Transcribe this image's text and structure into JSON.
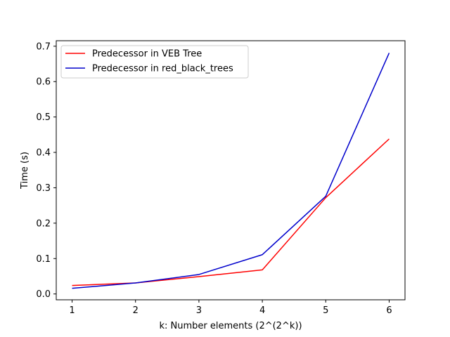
{
  "chart_data": {
    "type": "line",
    "title": "",
    "xlabel": "k: Number elements (2^(2^k))",
    "ylabel": "Time (s)",
    "x": [
      1,
      2,
      3,
      4,
      5,
      6
    ],
    "x_ticks": [
      "1",
      "2",
      "3",
      "4",
      "5",
      "6"
    ],
    "y_ticks": [
      "0.0",
      "0.1",
      "0.2",
      "0.3",
      "0.4",
      "0.5",
      "0.6",
      "0.7"
    ],
    "xlim": [
      0.75,
      6.25
    ],
    "ylim": [
      -0.0165,
      0.7155
    ],
    "grid": false,
    "legend_position": "top-left",
    "series": [
      {
        "name": "Predecessor in VEB Tree",
        "color": "#ff0000",
        "values": [
          0.024,
          0.031,
          0.049,
          0.068,
          0.272,
          0.438
        ]
      },
      {
        "name": "Predecessor in red_black_trees",
        "color": "#0000cc",
        "values": [
          0.016,
          0.031,
          0.055,
          0.111,
          0.276,
          0.681
        ]
      }
    ]
  }
}
